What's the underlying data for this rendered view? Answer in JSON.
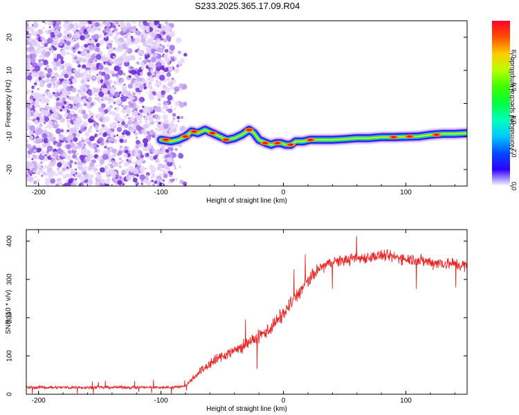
{
  "title": "S233.2025.365.17.09.R04",
  "chart_data": [
    {
      "type": "heatmap",
      "name": "spectrogram",
      "xlabel": "Height of straight line (km)",
      "ylabel": "Frequency (Hz)",
      "xlim": [
        -210,
        150
      ],
      "ylim": [
        -25,
        25
      ],
      "xticks": [
        -200,
        -100,
        0,
        100
      ],
      "yticks": [
        -20,
        -10,
        0,
        10,
        20
      ],
      "noise_region_x": [
        -210,
        -80
      ],
      "noise_edge_x": -90,
      "carrier_start_x": -100,
      "carrier_track": [
        {
          "x": -100,
          "y": -11
        },
        {
          "x": -92,
          "y": -11.5
        },
        {
          "x": -86,
          "y": -11
        },
        {
          "x": -80,
          "y": -10
        },
        {
          "x": -75,
          "y": -8.5
        },
        {
          "x": -70,
          "y": -9
        },
        {
          "x": -64,
          "y": -8
        },
        {
          "x": -58,
          "y": -9
        },
        {
          "x": -52,
          "y": -10
        },
        {
          "x": -46,
          "y": -11
        },
        {
          "x": -40,
          "y": -10.5
        },
        {
          "x": -34,
          "y": -9.5
        },
        {
          "x": -28,
          "y": -8
        },
        {
          "x": -24,
          "y": -9
        },
        {
          "x": -20,
          "y": -11
        },
        {
          "x": -14,
          "y": -12
        },
        {
          "x": -10,
          "y": -12.5
        },
        {
          "x": -6,
          "y": -12
        },
        {
          "x": -2,
          "y": -12
        },
        {
          "x": 2,
          "y": -12.5
        },
        {
          "x": 6,
          "y": -12.5
        },
        {
          "x": 10,
          "y": -11.5
        },
        {
          "x": 16,
          "y": -11.5
        },
        {
          "x": 22,
          "y": -11
        },
        {
          "x": 30,
          "y": -11
        },
        {
          "x": 40,
          "y": -11
        },
        {
          "x": 50,
          "y": -10.8
        },
        {
          "x": 60,
          "y": -10.5
        },
        {
          "x": 70,
          "y": -10.5
        },
        {
          "x": 80,
          "y": -10.2
        },
        {
          "x": 90,
          "y": -10.2
        },
        {
          "x": 100,
          "y": -10.1
        },
        {
          "x": 110,
          "y": -10
        },
        {
          "x": 120,
          "y": -9.5
        },
        {
          "x": 130,
          "y": -9.2
        },
        {
          "x": 140,
          "y": -9.2
        },
        {
          "x": 150,
          "y": -9
        }
      ],
      "peaks": [
        {
          "x": -96,
          "y": -11
        },
        {
          "x": -80,
          "y": -10
        },
        {
          "x": -73,
          "y": -8.5
        },
        {
          "x": -58,
          "y": -9
        },
        {
          "x": -47,
          "y": -11
        },
        {
          "x": -28,
          "y": -8
        },
        {
          "x": -15,
          "y": -12
        },
        {
          "x": -5,
          "y": -12
        },
        {
          "x": 6,
          "y": -12.5
        },
        {
          "x": 22,
          "y": -11
        },
        {
          "x": 90,
          "y": -10.2
        },
        {
          "x": 103,
          "y": -10
        },
        {
          "x": 125,
          "y": -9.5
        }
      ],
      "colorbar": {
        "label": "Normalized spectral amplitude",
        "range": [
          0,
          1
        ],
        "ticks": [
          0.0,
          0.2,
          0.4,
          0.6,
          0.8
        ],
        "tick_labels": [
          "0.0",
          "0.2",
          "0.4",
          "0.6",
          "0.8"
        ]
      }
    },
    {
      "type": "line",
      "name": "snr",
      "xlabel": "Height of straight line (km)",
      "ylabel": "SNR (10 * v/v)",
      "xlim": [
        -210,
        150
      ],
      "ylim": [
        0,
        430
      ],
      "xticks": [
        -200,
        -100,
        0,
        100
      ],
      "yticks": [
        0,
        100,
        200,
        300,
        400
      ],
      "color": "#ee2222",
      "trend": [
        {
          "x": -210,
          "y": 18
        },
        {
          "x": -90,
          "y": 18
        },
        {
          "x": -80,
          "y": 22
        },
        {
          "x": -70,
          "y": 55
        },
        {
          "x": -60,
          "y": 80
        },
        {
          "x": -50,
          "y": 100
        },
        {
          "x": -40,
          "y": 115
        },
        {
          "x": -30,
          "y": 130
        },
        {
          "x": -20,
          "y": 150
        },
        {
          "x": -10,
          "y": 175
        },
        {
          "x": 0,
          "y": 210
        },
        {
          "x": 10,
          "y": 255
        },
        {
          "x": 20,
          "y": 295
        },
        {
          "x": 30,
          "y": 330
        },
        {
          "x": 40,
          "y": 345
        },
        {
          "x": 60,
          "y": 355
        },
        {
          "x": 80,
          "y": 362
        },
        {
          "x": 100,
          "y": 355
        },
        {
          "x": 120,
          "y": 345
        },
        {
          "x": 140,
          "y": 340
        },
        {
          "x": 150,
          "y": 335
        }
      ],
      "noise_amplitude": [
        {
          "x": -210,
          "y": 6
        },
        {
          "x": -80,
          "y": 6
        },
        {
          "x": -60,
          "y": 22
        },
        {
          "x": 0,
          "y": 30
        },
        {
          "x": 40,
          "y": 22
        },
        {
          "x": 150,
          "y": 25
        }
      ]
    }
  ]
}
